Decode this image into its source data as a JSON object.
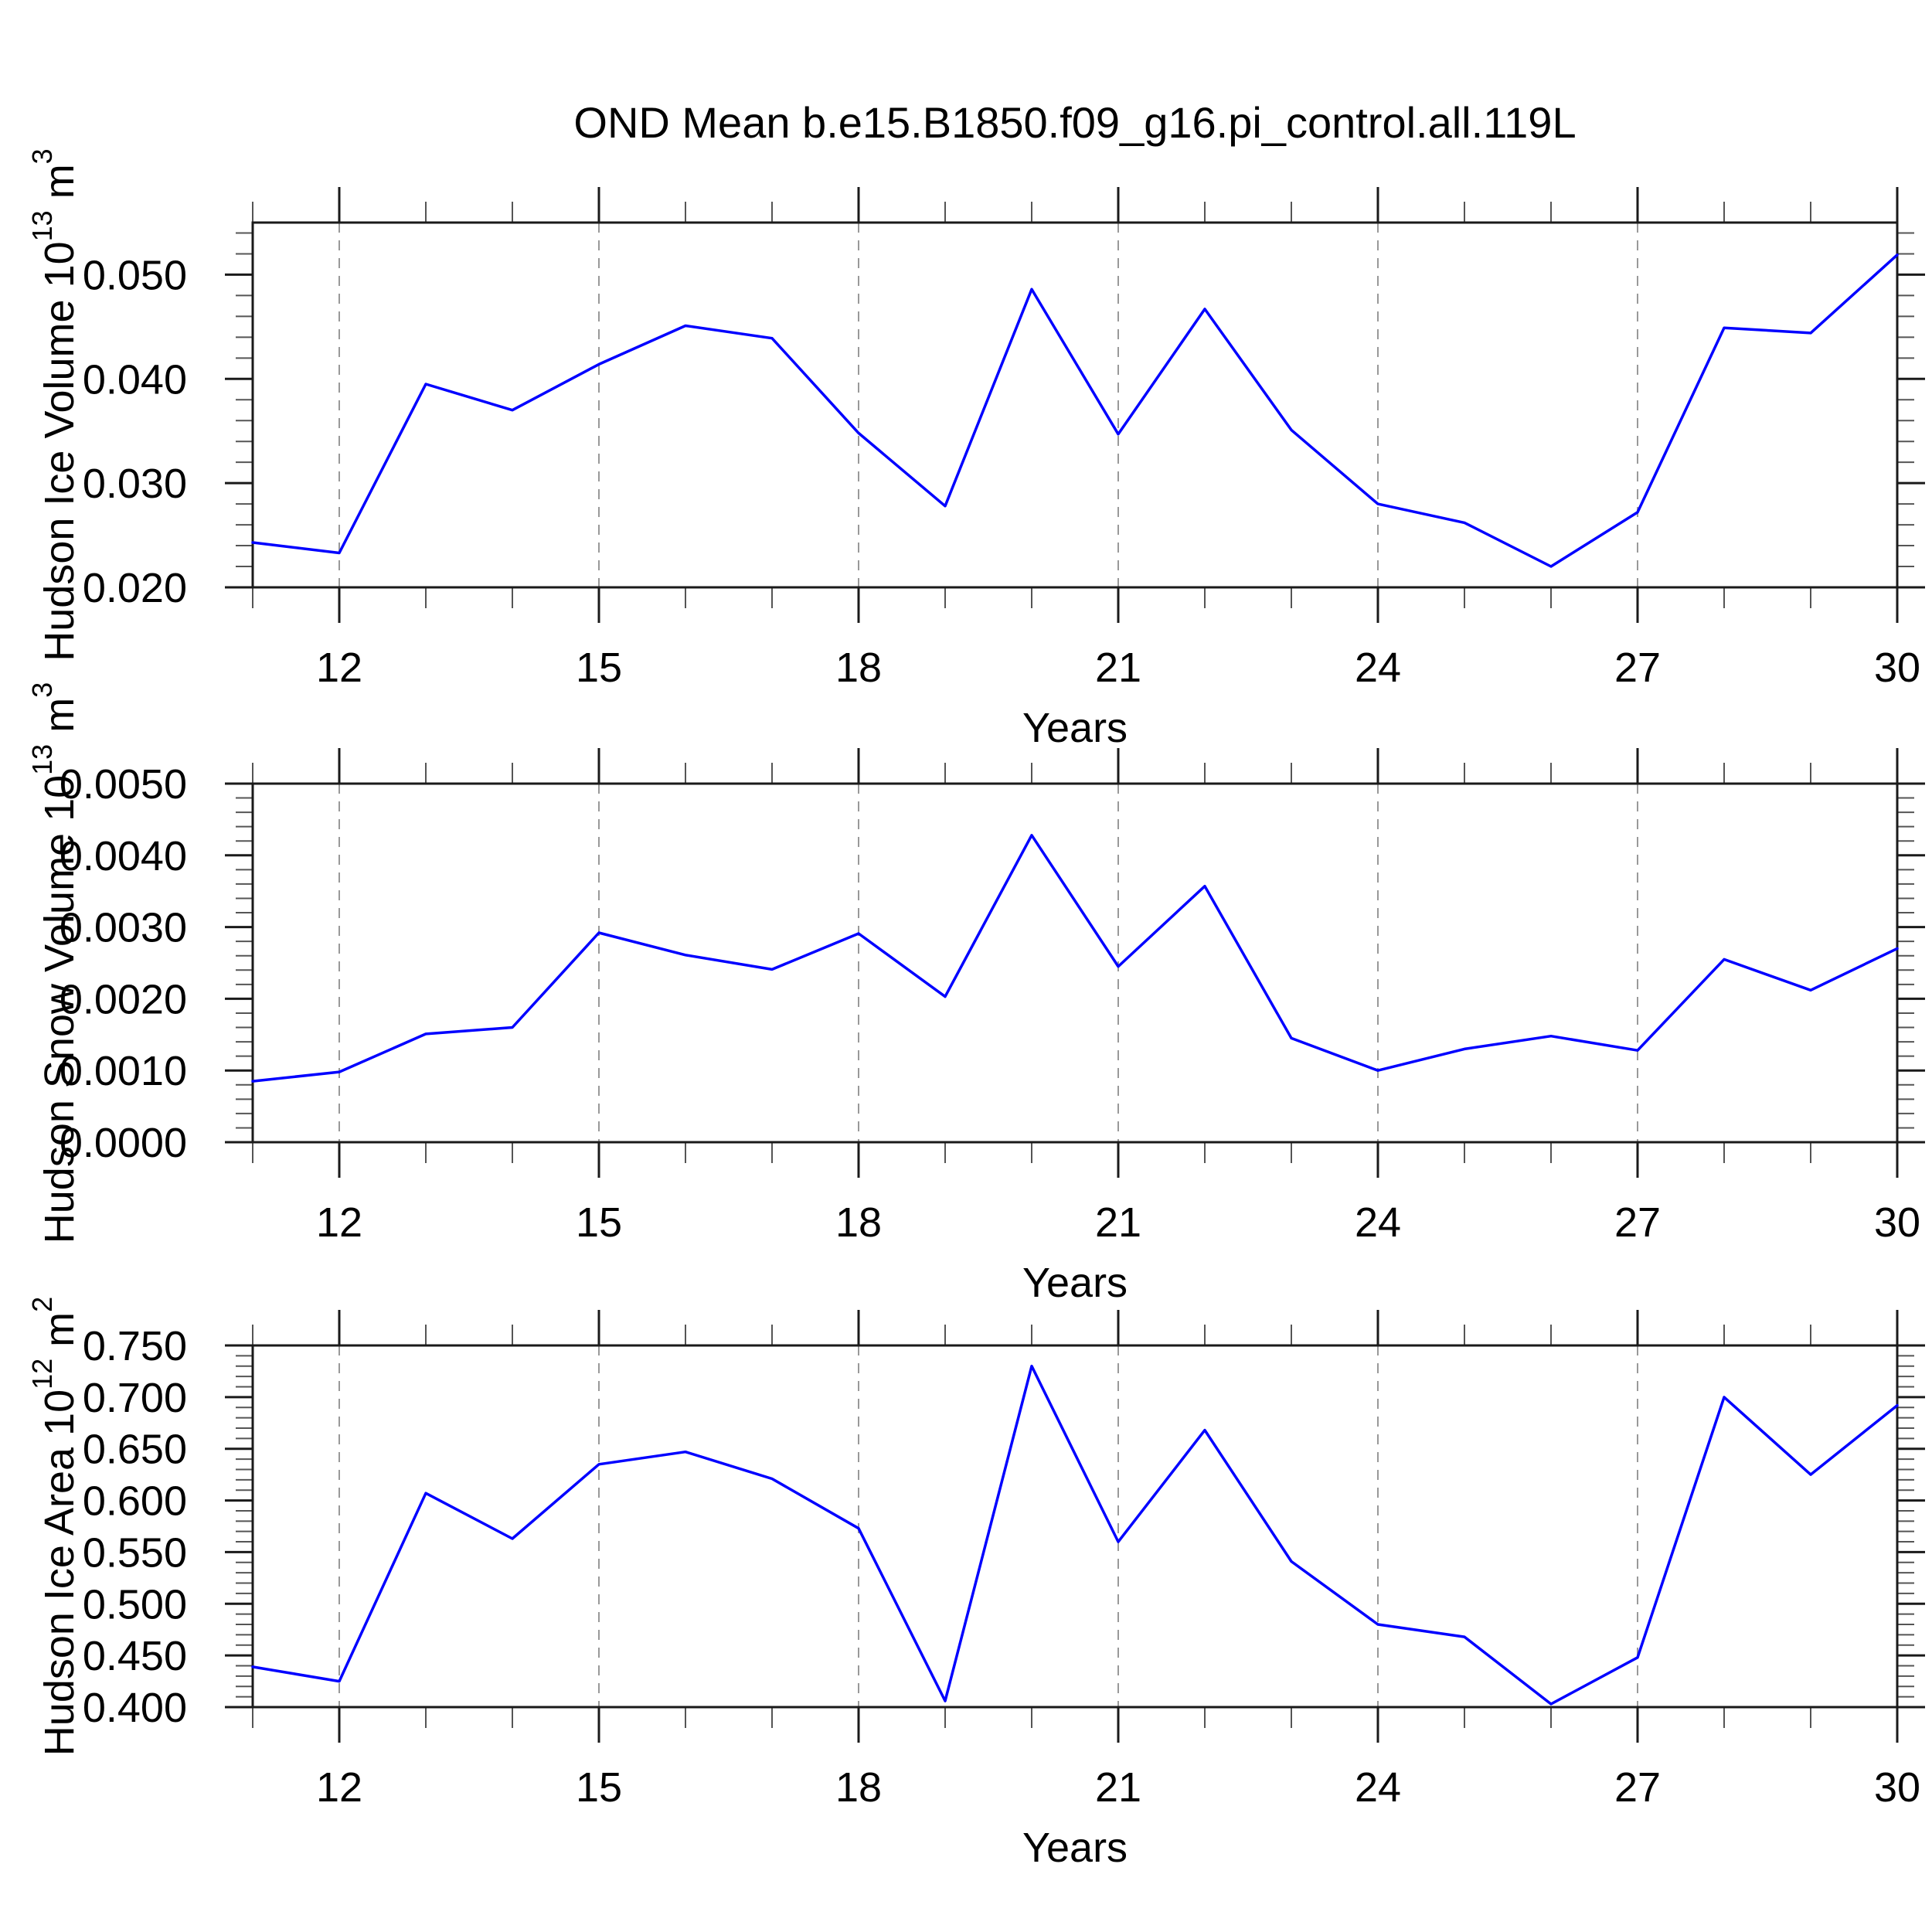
{
  "title": "OND Mean b.e15.B1850.f09_g16.pi_control.all.119L",
  "accent_color": "#0000ff",
  "chart_data": [
    {
      "id": "hudson-ice-volume",
      "type": "line",
      "title": "",
      "ylabel": "Hudson Ice Volume 10^13 m^3",
      "ylabel_parts": [
        {
          "text": "Hudson Ice Volume 10"
        },
        {
          "text": "13",
          "super": true
        },
        {
          "text": " m"
        },
        {
          "text": "3",
          "super": true
        }
      ],
      "xlabel": "Years",
      "x": [
        11,
        12,
        13,
        14,
        15,
        16,
        17,
        18,
        19,
        20,
        21,
        22,
        23,
        24,
        25,
        26,
        27,
        28,
        29,
        30
      ],
      "values": [
        0.0243,
        0.0233,
        0.0395,
        0.037,
        0.0414,
        0.0451,
        0.0439,
        0.0348,
        0.0278,
        0.0486,
        0.0347,
        0.0467,
        0.0351,
        0.028,
        0.0262,
        0.022,
        0.0272,
        0.0449,
        0.0444,
        0.0519
      ],
      "xlim": [
        11,
        30
      ],
      "ylim": [
        0.02,
        0.055
      ],
      "xticks": [
        12,
        15,
        18,
        21,
        24,
        27,
        30
      ],
      "xtick_labels": [
        "12",
        "15",
        "18",
        "21",
        "24",
        "27",
        "30"
      ],
      "xminor_step": 1,
      "yticks": [
        0.02,
        0.03,
        0.04,
        0.05
      ],
      "ytick_labels": [
        "0.020",
        "0.030",
        "0.040",
        "0.050"
      ],
      "yminor_step": 0.002,
      "grid": "dashed-vertical-at-major-xticks",
      "legend": "none",
      "line_color": "#0000ff"
    },
    {
      "id": "hudson-snow-volume",
      "type": "line",
      "title": "",
      "ylabel": "Hudson Snow Volume 10^13 m^3",
      "ylabel_parts": [
        {
          "text": "Hudson Snow Volume 10"
        },
        {
          "text": "13",
          "super": true
        },
        {
          "text": " m"
        },
        {
          "text": "3",
          "super": true
        }
      ],
      "xlabel": "Years",
      "x": [
        11,
        12,
        13,
        14,
        15,
        16,
        17,
        18,
        19,
        20,
        21,
        22,
        23,
        24,
        25,
        26,
        27,
        28,
        29,
        30
      ],
      "values": [
        0.00085,
        0.00098,
        0.00151,
        0.0016,
        0.00292,
        0.00261,
        0.00241,
        0.00291,
        0.00203,
        0.00428,
        0.00245,
        0.00357,
        0.00145,
        0.001,
        0.0013,
        0.00148,
        0.00128,
        0.00255,
        0.00212,
        0.0027
      ],
      "xlim": [
        11,
        30
      ],
      "ylim": [
        0.0,
        0.005
      ],
      "xticks": [
        12,
        15,
        18,
        21,
        24,
        27,
        30
      ],
      "xtick_labels": [
        "12",
        "15",
        "18",
        "21",
        "24",
        "27",
        "30"
      ],
      "xminor_step": 1,
      "yticks": [
        0.0,
        0.001,
        0.002,
        0.003,
        0.004,
        0.005
      ],
      "ytick_labels": [
        "0.0000",
        "0.0010",
        "0.0020",
        "0.0030",
        "0.0040",
        "0.0050"
      ],
      "yminor_step": 0.0002,
      "grid": "dashed-vertical-at-major-xticks",
      "legend": "none",
      "line_color": "#0000ff"
    },
    {
      "id": "hudson-ice-area",
      "type": "line",
      "title": "",
      "ylabel": "Hudson Ice Area 10^12 m^2",
      "ylabel_parts": [
        {
          "text": "Hudson Ice Area 10"
        },
        {
          "text": "12",
          "super": true
        },
        {
          "text": " m"
        },
        {
          "text": "2",
          "super": true
        }
      ],
      "xlabel": "Years",
      "x": [
        11,
        12,
        13,
        14,
        15,
        16,
        17,
        18,
        19,
        20,
        21,
        22,
        23,
        24,
        25,
        26,
        27,
        28,
        29,
        30
      ],
      "values": [
        0.439,
        0.425,
        0.607,
        0.563,
        0.635,
        0.647,
        0.621,
        0.573,
        0.406,
        0.73,
        0.56,
        0.668,
        0.541,
        0.48,
        0.468,
        0.403,
        0.448,
        0.7,
        0.625,
        0.692
      ],
      "xlim": [
        11,
        30
      ],
      "ylim": [
        0.4,
        0.75
      ],
      "xticks": [
        12,
        15,
        18,
        21,
        24,
        27,
        30
      ],
      "xtick_labels": [
        "12",
        "15",
        "18",
        "21",
        "24",
        "27",
        "30"
      ],
      "xminor_step": 1,
      "yticks": [
        0.4,
        0.45,
        0.5,
        0.55,
        0.6,
        0.65,
        0.7,
        0.75
      ],
      "ytick_labels": [
        "0.400",
        "0.450",
        "0.500",
        "0.550",
        "0.600",
        "0.650",
        "0.700",
        "0.750"
      ],
      "yminor_step": 0.01,
      "grid": "dashed-vertical-at-major-xticks",
      "legend": "none",
      "line_color": "#0000ff"
    }
  ]
}
